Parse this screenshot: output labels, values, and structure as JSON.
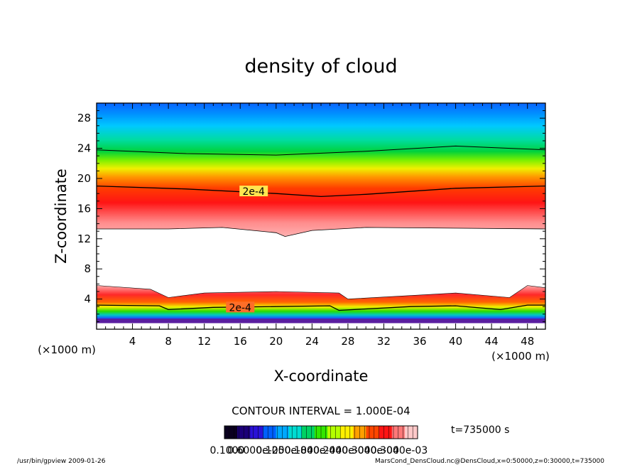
{
  "chart_data": {
    "type": "heatmap",
    "title": "density of cloud",
    "xlabel": "X-coordinate",
    "ylabel": "Z-coordinate",
    "x_unit": "(×1000 m)",
    "z_unit": "(×1000 m)",
    "xlim": [
      0,
      50
    ],
    "ylim": [
      0,
      30
    ],
    "x_ticks": [
      4,
      8,
      12,
      16,
      20,
      24,
      28,
      32,
      36,
      40,
      44,
      48
    ],
    "y_ticks": [
      4,
      8,
      12,
      16,
      20,
      24,
      28
    ],
    "contour_interval_text": "CONTOUR INTERVAL = 1.000E-04",
    "contour_labels": [
      {
        "x": 17.5,
        "z": 18.2,
        "text": "2e-4"
      },
      {
        "x": 16,
        "z": 2.8,
        "text": "2e-4"
      }
    ],
    "upper_layer": {
      "contour_1e-4_z": [
        [
          0,
          23.8
        ],
        [
          10,
          23.3
        ],
        [
          20,
          23.1
        ],
        [
          30,
          23.6
        ],
        [
          40,
          24.3
        ],
        [
          50,
          23.8
        ]
      ],
      "contour_2e-4_z": [
        [
          0,
          19.0
        ],
        [
          10,
          18.6
        ],
        [
          20,
          18.0
        ],
        [
          25,
          17.6
        ],
        [
          30,
          17.9
        ],
        [
          40,
          18.7
        ],
        [
          50,
          19.0
        ]
      ],
      "peak_z": [
        [
          0,
          15.4
        ],
        [
          20,
          14.6
        ],
        [
          25,
          14.9
        ],
        [
          50,
          15.4
        ]
      ],
      "bottom_edge_z": [
        [
          0,
          13.3
        ],
        [
          8,
          13.3
        ],
        [
          14,
          13.5
        ],
        [
          20,
          12.8
        ],
        [
          21,
          12.3
        ],
        [
          24,
          13.1
        ],
        [
          30,
          13.5
        ],
        [
          50,
          13.3
        ]
      ]
    },
    "lower_layer": {
      "top_edge_z": [
        [
          0,
          5.8
        ],
        [
          6,
          5.3
        ],
        [
          8,
          4.2
        ],
        [
          12,
          4.8
        ],
        [
          20,
          5.0
        ],
        [
          27,
          4.8
        ],
        [
          28,
          4.0
        ],
        [
          40,
          4.8
        ],
        [
          46,
          4.2
        ],
        [
          48,
          5.8
        ],
        [
          50,
          5.5
        ]
      ],
      "contour_2e-4_z": [
        [
          0,
          3.2
        ],
        [
          7,
          3.1
        ],
        [
          8,
          2.6
        ],
        [
          13,
          2.9
        ],
        [
          20,
          3.0
        ],
        [
          26,
          3.1
        ],
        [
          27,
          2.5
        ],
        [
          35,
          3.0
        ],
        [
          40,
          3.1
        ],
        [
          45,
          2.6
        ],
        [
          48,
          3.2
        ],
        [
          50,
          3.2
        ]
      ],
      "base_z": [
        [
          0,
          1.0
        ],
        [
          50,
          1.0
        ]
      ]
    },
    "colorbar": {
      "colors": [
        "#0a001e",
        "#1c0078",
        "#2a12d8",
        "#0060ff",
        "#00a8ff",
        "#00dcd2",
        "#00d264",
        "#32e600",
        "#b4ff00",
        "#fff000",
        "#ffa000",
        "#ff4600",
        "#ff1414",
        "#ff7878",
        "#ffc8c8"
      ],
      "tick_labels": [
        "0.1000",
        "0.6000e-05",
        "0.1200e-04",
        "0.1800e-04",
        "0.2400e-04",
        "0.3000e-04",
        "0.3000e-03"
      ]
    },
    "time_text": "t=735000 s"
  },
  "footer": {
    "left": "/usr/bin/gpview   2009-01-26",
    "right": "MarsCond_DensCloud.nc@DensCloud,x=0:50000,z=0:30000,t=735000"
  }
}
